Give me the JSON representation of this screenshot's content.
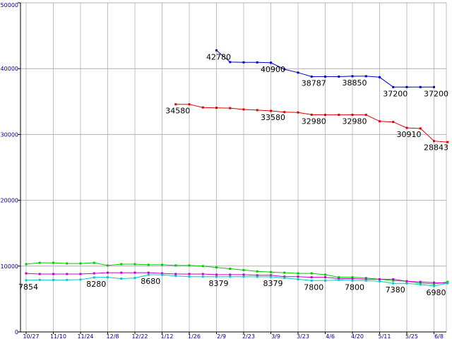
{
  "chart_data": {
    "type": "line",
    "title": "",
    "xlabel": "",
    "ylabel": "",
    "ylim": [
      0,
      50000
    ],
    "yticks": [
      "0",
      "10000",
      "20000",
      "30000",
      "40000",
      "50000"
    ],
    "xticks": [
      "10/27",
      "11/10",
      "11/24",
      "12/8",
      "12/22",
      "1/12",
      "1/26",
      "2/9",
      "2/23",
      "3/9",
      "3/23",
      "4/6",
      "4/20",
      "5/11",
      "5/25",
      "6/8"
    ],
    "grid": true,
    "series": [
      {
        "color": "#0000cc",
        "points": [
          [
            7.0,
            42780
          ],
          [
            7.5,
            41000
          ],
          [
            8.0,
            40950
          ],
          [
            8.5,
            40950
          ],
          [
            9.0,
            40900
          ],
          [
            9.5,
            39900
          ],
          [
            10.0,
            39400
          ],
          [
            10.5,
            38787
          ],
          [
            11.0,
            38787
          ],
          [
            11.5,
            38787
          ],
          [
            12.0,
            38850
          ],
          [
            12.5,
            38850
          ],
          [
            13.0,
            38700
          ],
          [
            13.5,
            37200
          ],
          [
            14.0,
            37200
          ],
          [
            14.5,
            37200
          ],
          [
            15.0,
            37200
          ]
        ],
        "labels": [
          {
            "at": 7.0,
            "text": "42780"
          },
          {
            "at": 9.0,
            "text": "40900"
          },
          {
            "at": 10.5,
            "text": "38787"
          },
          {
            "at": 12.0,
            "text": "38850"
          },
          {
            "at": 13.5,
            "text": "37200"
          },
          {
            "at": 15.0,
            "text": "37200"
          }
        ]
      },
      {
        "color": "#dd0000",
        "points": [
          [
            5.5,
            34580
          ],
          [
            6.0,
            34580
          ],
          [
            6.5,
            34100
          ],
          [
            7.0,
            34050
          ],
          [
            7.5,
            34000
          ],
          [
            8.0,
            33800
          ],
          [
            8.5,
            33700
          ],
          [
            9.0,
            33580
          ],
          [
            9.5,
            33400
          ],
          [
            10.0,
            33350
          ],
          [
            10.5,
            33000
          ],
          [
            11.0,
            32980
          ],
          [
            11.5,
            32980
          ],
          [
            12.0,
            32980
          ],
          [
            12.5,
            32980
          ],
          [
            13.0,
            32000
          ],
          [
            13.5,
            31900
          ],
          [
            14.0,
            31000
          ],
          [
            14.5,
            30910
          ],
          [
            15.0,
            29000
          ],
          [
            15.5,
            28843
          ]
        ],
        "labels": [
          {
            "at": 5.5,
            "text": "34580"
          },
          {
            "at": 9.0,
            "text": "33580"
          },
          {
            "at": 10.5,
            "text": "32980"
          },
          {
            "at": 12.0,
            "text": "32980"
          },
          {
            "at": 14.0,
            "text": "30910"
          },
          {
            "at": 15.0,
            "text": "28843"
          }
        ]
      },
      {
        "color": "#00cc00",
        "points": [
          [
            0.0,
            10300
          ],
          [
            0.5,
            10500
          ],
          [
            1.0,
            10500
          ],
          [
            1.5,
            10400
          ],
          [
            2.0,
            10400
          ],
          [
            2.5,
            10500
          ],
          [
            3.0,
            10100
          ],
          [
            3.5,
            10300
          ],
          [
            4.0,
            10300
          ],
          [
            4.5,
            10200
          ],
          [
            5.0,
            10200
          ],
          [
            5.5,
            10100
          ],
          [
            6.0,
            10100
          ],
          [
            6.5,
            10000
          ],
          [
            7.0,
            9800
          ],
          [
            7.5,
            9600
          ],
          [
            8.0,
            9400
          ],
          [
            8.5,
            9200
          ],
          [
            9.0,
            9100
          ],
          [
            9.5,
            9000
          ],
          [
            10.0,
            8900
          ],
          [
            10.5,
            8900
          ],
          [
            11.0,
            8700
          ],
          [
            11.5,
            8300
          ],
          [
            12.0,
            8300
          ],
          [
            12.5,
            8200
          ],
          [
            13.0,
            8000
          ],
          [
            13.5,
            7800
          ],
          [
            14.0,
            7700
          ],
          [
            14.5,
            7400
          ],
          [
            15.0,
            7300
          ],
          [
            15.5,
            7600
          ]
        ],
        "labels": []
      },
      {
        "color": "#cc00cc",
        "points": [
          [
            0.0,
            8900
          ],
          [
            0.5,
            8800
          ],
          [
            1.0,
            8800
          ],
          [
            1.5,
            8800
          ],
          [
            2.0,
            8800
          ],
          [
            2.5,
            8900
          ],
          [
            3.0,
            9000
          ],
          [
            3.5,
            9000
          ],
          [
            4.0,
            9000
          ],
          [
            4.5,
            9000
          ],
          [
            5.0,
            8900
          ],
          [
            5.5,
            8800
          ],
          [
            6.0,
            8800
          ],
          [
            6.5,
            8800
          ],
          [
            7.0,
            8700
          ],
          [
            7.5,
            8700
          ],
          [
            8.0,
            8700
          ],
          [
            8.5,
            8600
          ],
          [
            9.0,
            8600
          ],
          [
            9.5,
            8400
          ],
          [
            10.0,
            8400
          ],
          [
            10.5,
            8300
          ],
          [
            11.0,
            8300
          ],
          [
            11.5,
            8100
          ],
          [
            12.0,
            8100
          ],
          [
            12.5,
            8000
          ],
          [
            13.0,
            8000
          ],
          [
            13.5,
            8000
          ],
          [
            14.0,
            7700
          ],
          [
            14.5,
            7600
          ],
          [
            15.0,
            7500
          ],
          [
            15.5,
            7400
          ]
        ],
        "labels": []
      },
      {
        "color": "#00cccc",
        "points": [
          [
            0.0,
            7854
          ],
          [
            0.5,
            7900
          ],
          [
            1.0,
            7900
          ],
          [
            1.5,
            7900
          ],
          [
            2.0,
            7950
          ],
          [
            2.5,
            8280
          ],
          [
            3.0,
            8300
          ],
          [
            3.5,
            8100
          ],
          [
            4.0,
            8200
          ],
          [
            4.5,
            8680
          ],
          [
            5.0,
            8680
          ],
          [
            5.5,
            8500
          ],
          [
            6.0,
            8400
          ],
          [
            6.5,
            8400
          ],
          [
            7.0,
            8379
          ],
          [
            7.5,
            8400
          ],
          [
            8.0,
            8400
          ],
          [
            8.5,
            8379
          ],
          [
            9.0,
            8379
          ],
          [
            9.5,
            8200
          ],
          [
            10.0,
            8000
          ],
          [
            10.5,
            7800
          ],
          [
            11.0,
            7800
          ],
          [
            11.5,
            7900
          ],
          [
            12.0,
            7800
          ],
          [
            12.5,
            7800
          ],
          [
            13.0,
            7700
          ],
          [
            13.5,
            7380
          ],
          [
            14.0,
            7380
          ],
          [
            14.5,
            7200
          ],
          [
            15.0,
            6980
          ],
          [
            15.5,
            7400
          ]
        ],
        "labels": [
          {
            "at": 0.0,
            "text": "7854"
          },
          {
            "at": 2.5,
            "text": "8280"
          },
          {
            "at": 4.5,
            "text": "8680"
          },
          {
            "at": 7.0,
            "text": "8379"
          },
          {
            "at": 9.0,
            "text": "8379"
          },
          {
            "at": 10.5,
            "text": "7800"
          },
          {
            "at": 12.0,
            "text": "7800"
          },
          {
            "at": 13.5,
            "text": "7380"
          },
          {
            "at": 15.0,
            "text": "6980"
          }
        ]
      }
    ]
  }
}
